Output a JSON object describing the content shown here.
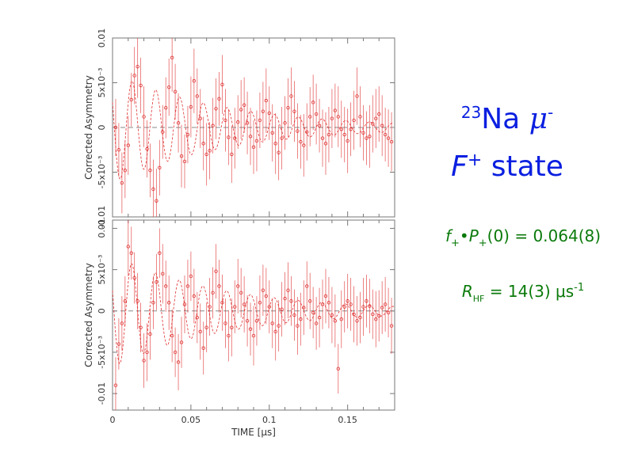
{
  "title": {
    "isotope_mass": "23",
    "element": "Na",
    "particle": "μ",
    "charge": "-",
    "state_letter": "F",
    "state_sign": "+",
    "state_word": "state"
  },
  "parameters": {
    "p1_f": "f",
    "p1_f_sub": "+",
    "p1_dot": "•",
    "p1_P": "P",
    "p1_P_sub": "+",
    "p1_rest": "(0) = 0.064(8)",
    "p2_R": "R",
    "p2_R_sub": "HF",
    "p2_rest": " = 14(3) μs",
    "p2_exp": "-1"
  },
  "colors": {
    "title": "#0a1fe0",
    "parameters": "#0a7a0a",
    "data": "#e03030",
    "fit": "#e03030",
    "zero_line": "#888888"
  },
  "chart_data": [
    {
      "type": "scatter",
      "panel": "top",
      "ylabel": "Corrected Asymmetry",
      "ylim": [
        -0.01,
        0.01
      ],
      "xlim": [
        0,
        0.18
      ],
      "y_tick_labels": [
        "-0.01",
        "-5x10⁻³",
        "0",
        "5x10⁻³",
        "0.01"
      ],
      "y_tick_values": [
        -0.01,
        -0.005,
        0,
        0.005,
        0.01
      ],
      "zero_line": true,
      "fit": {
        "amplitude": 0.0062,
        "frequency_per_us": 66,
        "phase": 1.1,
        "relaxation_per_us": 14
      },
      "x": [
        0.002,
        0.004,
        0.006,
        0.008,
        0.01,
        0.012,
        0.014,
        0.016,
        0.018,
        0.02,
        0.022,
        0.024,
        0.026,
        0.028,
        0.03,
        0.032,
        0.034,
        0.036,
        0.038,
        0.04,
        0.042,
        0.044,
        0.046,
        0.048,
        0.05,
        0.052,
        0.054,
        0.056,
        0.058,
        0.06,
        0.062,
        0.064,
        0.066,
        0.068,
        0.07,
        0.072,
        0.074,
        0.076,
        0.078,
        0.08,
        0.082,
        0.084,
        0.086,
        0.088,
        0.09,
        0.092,
        0.094,
        0.096,
        0.098,
        0.1,
        0.102,
        0.104,
        0.106,
        0.108,
        0.11,
        0.112,
        0.114,
        0.116,
        0.118,
        0.12,
        0.122,
        0.124,
        0.126,
        0.128,
        0.13,
        0.132,
        0.134,
        0.136,
        0.138,
        0.14,
        0.142,
        0.144,
        0.146,
        0.148,
        0.15,
        0.152,
        0.154,
        0.156,
        0.158,
        0.16,
        0.162,
        0.164,
        0.166,
        0.168,
        0.17,
        0.172,
        0.174,
        0.176,
        0.178
      ],
      "y": [
        0.0,
        -0.0025,
        -0.0062,
        -0.0048,
        -0.002,
        0.0031,
        0.0058,
        0.0068,
        0.0047,
        0.0012,
        -0.0024,
        -0.0048,
        -0.0069,
        -0.0082,
        -0.0045,
        -0.0005,
        0.0022,
        0.0045,
        0.0078,
        0.004,
        0.0005,
        -0.0032,
        -0.0038,
        -0.0008,
        0.0023,
        0.0052,
        0.0035,
        0.001,
        -0.0018,
        -0.003,
        -0.0026,
        0.0002,
        0.0021,
        0.0032,
        0.0048,
        0.0008,
        -0.0011,
        -0.003,
        -0.0012,
        0.0006,
        0.002,
        0.0025,
        0.0005,
        -0.001,
        -0.0022,
        -0.0015,
        0.0008,
        0.0018,
        0.003,
        0.0016,
        -0.0006,
        -0.0018,
        -0.0028,
        -0.0012,
        0.0005,
        0.0022,
        0.0035,
        0.0018,
        -0.0004,
        -0.0016,
        -0.002,
        -0.0005,
        0.0012,
        0.0028,
        0.0015,
        0.0002,
        -0.0012,
        -0.0018,
        -0.0008,
        0.001,
        0.0019,
        0.0012,
        -0.0002,
        -0.0008,
        -0.0015,
        -0.0002,
        0.0008,
        0.0035,
        0.0012,
        -0.0006,
        -0.0012,
        -0.001,
        0.0004,
        0.001,
        0.0015,
        0.0002,
        -0.0008,
        -0.0012,
        -0.0016
      ],
      "err": [
        0.0032,
        0.003,
        0.0034,
        0.0031,
        0.0033,
        0.003,
        0.0032,
        0.0035,
        0.0031,
        0.0034,
        0.0032,
        0.003,
        0.0033,
        0.0036,
        0.0031,
        0.003,
        0.0034,
        0.0032,
        0.0038,
        0.0031,
        0.0033,
        0.0035,
        0.003,
        0.0032,
        0.0034,
        0.0036,
        0.0031,
        0.0033,
        0.003,
        0.0035,
        0.0032,
        0.0031,
        0.0034,
        0.003,
        0.0033,
        0.0035,
        0.0031,
        0.0032,
        0.0034,
        0.003,
        0.0033,
        0.0031,
        0.0035,
        0.0032,
        0.003,
        0.0034,
        0.0031,
        0.0033,
        0.0036,
        0.003,
        0.0032,
        0.0034,
        0.0031,
        0.0035,
        0.003,
        0.0033,
        0.0032,
        0.0034,
        0.0031,
        0.003,
        0.0035,
        0.0032,
        0.0033,
        0.0031,
        0.0034,
        0.003,
        0.0032,
        0.0035,
        0.0031,
        0.0033,
        0.003,
        0.0034,
        0.0032,
        0.0031,
        0.0036,
        0.003,
        0.0033,
        0.0032,
        0.0034,
        0.0031,
        0.003,
        0.0035,
        0.0032,
        0.0033,
        0.0031,
        0.0034,
        0.003,
        0.0032,
        0.0033
      ]
    },
    {
      "type": "scatter",
      "panel": "bottom",
      "ylabel": "Corrected Asymmetry",
      "xlabel": "TIME [μs]",
      "ylim": [
        -0.012,
        0.011
      ],
      "xlim": [
        0,
        0.18
      ],
      "x_tick_labels": [
        "0",
        "0.05",
        "0.1",
        "0.15"
      ],
      "x_tick_values": [
        0,
        0.05,
        0.1,
        0.15
      ],
      "y_tick_labels": [
        "-0.01",
        "-5x10⁻³",
        "0",
        "5x10⁻³",
        "0.01"
      ],
      "y_tick_values": [
        -0.01,
        -0.005,
        0,
        0.005,
        0.01
      ],
      "zero_line": true,
      "fit": {
        "amplitude": 0.0068,
        "frequency_per_us": 66,
        "phase": 1.2,
        "relaxation_per_us": 14
      },
      "x": [
        0.002,
        0.004,
        0.006,
        0.008,
        0.01,
        0.012,
        0.014,
        0.016,
        0.018,
        0.02,
        0.022,
        0.024,
        0.026,
        0.028,
        0.03,
        0.032,
        0.034,
        0.036,
        0.038,
        0.04,
        0.042,
        0.044,
        0.046,
        0.048,
        0.05,
        0.052,
        0.054,
        0.056,
        0.058,
        0.06,
        0.062,
        0.064,
        0.066,
        0.068,
        0.07,
        0.072,
        0.074,
        0.076,
        0.078,
        0.08,
        0.082,
        0.084,
        0.086,
        0.088,
        0.09,
        0.092,
        0.094,
        0.096,
        0.098,
        0.1,
        0.102,
        0.104,
        0.106,
        0.108,
        0.11,
        0.112,
        0.114,
        0.116,
        0.118,
        0.12,
        0.122,
        0.124,
        0.126,
        0.128,
        0.13,
        0.132,
        0.134,
        0.136,
        0.138,
        0.14,
        0.142,
        0.144,
        0.146,
        0.148,
        0.15,
        0.152,
        0.154,
        0.156,
        0.158,
        0.16,
        0.162,
        0.164,
        0.166,
        0.168,
        0.17,
        0.172,
        0.174,
        0.176,
        0.178
      ],
      "y": [
        -0.009,
        -0.004,
        -0.0015,
        0.0012,
        0.0078,
        0.007,
        0.004,
        0.0012,
        -0.002,
        -0.006,
        -0.005,
        -0.0028,
        0.001,
        0.0035,
        0.007,
        0.0045,
        0.003,
        0.001,
        -0.003,
        -0.005,
        -0.0062,
        -0.0038,
        0.0008,
        0.003,
        0.0042,
        0.0018,
        -0.0008,
        -0.0025,
        -0.0045,
        -0.002,
        0.0005,
        0.0022,
        0.0048,
        0.003,
        0.001,
        -0.0015,
        -0.003,
        -0.002,
        0.0005,
        0.003,
        0.0022,
        0.0008,
        -0.0012,
        -0.0022,
        -0.003,
        -0.0012,
        0.001,
        0.0025,
        0.0018,
        0.0005,
        -0.0015,
        -0.0025,
        -0.0018,
        0.0002,
        0.0015,
        0.0025,
        0.0012,
        -0.0005,
        -0.0018,
        -0.001,
        0.0004,
        0.003,
        0.0012,
        -0.0002,
        -0.0015,
        -0.0008,
        0.0008,
        0.0018,
        0.001,
        -0.0005,
        -0.0012,
        -0.007,
        -0.001,
        0.0005,
        0.0012,
        0.0008,
        -0.0004,
        -0.0012,
        -0.0008,
        0.0005,
        0.0012,
        0.0006,
        -0.0004,
        -0.001,
        -0.0006,
        0.0004,
        0.0008,
        -0.0002,
        -0.0018
      ],
      "err": [
        0.0034,
        0.0031,
        0.0033,
        0.003,
        0.0036,
        0.0032,
        0.0031,
        0.0034,
        0.003,
        0.0033,
        0.0035,
        0.0031,
        0.0032,
        0.0034,
        0.003,
        0.0036,
        0.0031,
        0.0033,
        0.0032,
        0.003,
        0.0034,
        0.0031,
        0.0035,
        0.0032,
        0.003,
        0.0033,
        0.0031,
        0.0034,
        0.0032,
        0.003,
        0.0035,
        0.0031,
        0.0033,
        0.0032,
        0.0034,
        0.003,
        0.0031,
        0.0035,
        0.0032,
        0.0033,
        0.003,
        0.0034,
        0.0031,
        0.0032,
        0.0036,
        0.003,
        0.0033,
        0.0031,
        0.0034,
        0.0032,
        0.003,
        0.0035,
        0.0031,
        0.0033,
        0.0032,
        0.0034,
        0.003,
        0.0031,
        0.0035,
        0.0032,
        0.0033,
        0.003,
        0.0034,
        0.0031,
        0.0032,
        0.0036,
        0.003,
        0.0033,
        0.0031,
        0.0034,
        0.0032,
        0.003,
        0.0035,
        0.0031,
        0.0033,
        0.0032,
        0.0034,
        0.003,
        0.0031,
        0.0035,
        0.0032,
        0.0033,
        0.003,
        0.0034,
        0.0031,
        0.0032,
        0.0033,
        0.003,
        0.0034
      ]
    }
  ]
}
